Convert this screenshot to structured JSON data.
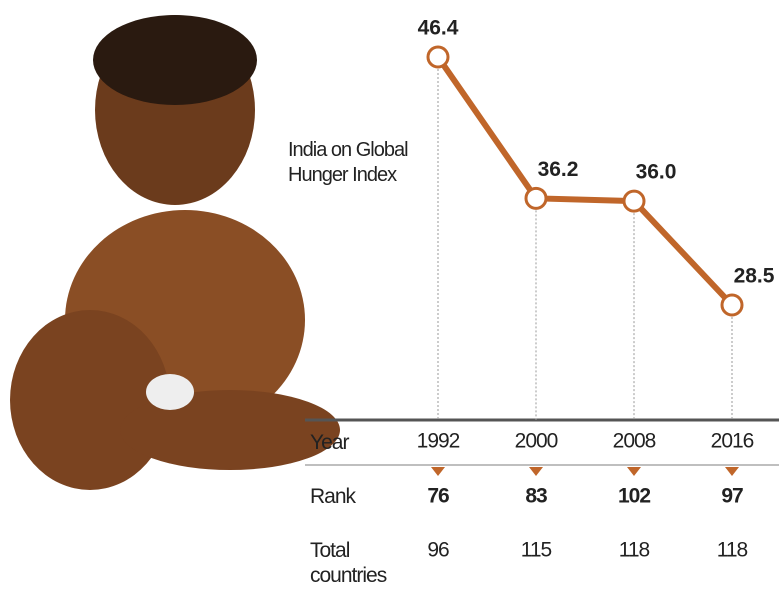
{
  "chart_data": {
    "type": "line",
    "title": "India on Global Hunger Index",
    "categories": [
      "1992",
      "2000",
      "2008",
      "2016"
    ],
    "values": [
      46.4,
      36.2,
      36.0,
      28.5
    ],
    "value_labels": [
      "46.4",
      "36.2",
      "36.0",
      "28.5"
    ],
    "color": "#c0662a"
  },
  "table": {
    "header": "Year",
    "rows": [
      {
        "label": "Rank",
        "values": [
          76,
          83,
          102,
          97
        ]
      },
      {
        "label": "Total countries",
        "values": [
          96,
          115,
          118,
          118
        ]
      }
    ]
  }
}
